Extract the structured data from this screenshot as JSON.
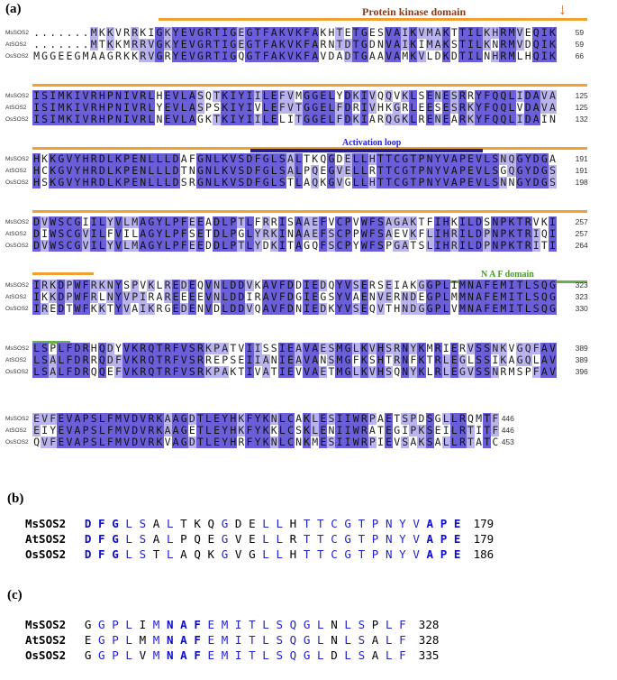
{
  "panels": {
    "a": "(a)",
    "b": "(b)",
    "c": "(c)"
  },
  "annotations": {
    "kinase": "Protein kinase domain",
    "activation": "Activation loop",
    "naf": "N A F domain",
    "arrow": "↓"
  },
  "alignment": [
    {
      "rows": [
        {
          "name": "MsSOS2",
          "seq": ".......MKKVRRKIGKYEVGRTIGEGTFAKVKFAKHTETGESVAIKVMAKTTILKHRMVEQIKRE",
          "num": "59"
        },
        {
          "name": "AtSOS2",
          "seq": ".......MTKKMRRVGKYEVGRTIGEGTFAKVKFARNTDTGDNVAIKIMAKSTILKNRMVDQIKRE",
          "num": "59"
        },
        {
          "name": "OsSOS2",
          "seq": "MGGEEGMAAGRKKRVGRYEVGRTIGQGTFAKVKFAVDADTGAAVAMKVLDKDTILNHRMLHQIKRE",
          "num": "66"
        }
      ]
    },
    {
      "rows": [
        {
          "name": "MsSOS2",
          "seq": "ISIMKIVRHPNIVRLHEVLASQTKIYIILEFVMGGELYDKIVQQVKLSENESRRYFQQLIDAVAHC",
          "num": "125"
        },
        {
          "name": "AtSOS2",
          "seq": "ISIMKIVRHPNIVRLYEVLASPSKIYIVLEFVTGGELFDRIVHKGRLEESESRKYFQQLVDAVAHC",
          "num": "125"
        },
        {
          "name": "OsSOS2",
          "seq": "ISIMKIVRHPNIVRLNEVLAGKTKIYIILELITGGELFDKIARQGKLRENEARKYFQQLIDAINYC",
          "num": "132"
        }
      ]
    },
    {
      "rows": [
        {
          "name": "MsSOS2",
          "seq": "HKKGVYHRDLKPENLLLDAFGNLKVSDFGLSALTKQGDELLHTTCGTPNYVAPEVLSNQGYDGAAA",
          "num": "191"
        },
        {
          "name": "AtSOS2",
          "seq": "HCKGVYHRDLKPENLLLDTNGNLKVSDFGLSALPQEGVELLRTTCGTPNYVAPEVLSGQGYDGSAA",
          "num": "191"
        },
        {
          "name": "OsSOS2",
          "seq": "HSKGVYHRDLKPENLLLDSRGNLKVSDFGLSTLAQKGVGLLHTTCGTPNYVAPEVLSNNGYDGSAA",
          "num": "198"
        }
      ]
    },
    {
      "rows": [
        {
          "name": "MsSOS2",
          "seq": "DVWSCGIILYVLMAGYLPFEEADLPTLFRRISAAEFVCPVWFSAGAKTFIHKILDSNPKTRVKIEE",
          "num": "257"
        },
        {
          "name": "AtSOS2",
          "seq": "DIWSCGVILFVILAGYLPFSETDLPGLYRKINAAEFSCPPWFSAEVKFLIHRILDPNPKTRIQIQG",
          "num": "257"
        },
        {
          "name": "OsSOS2",
          "seq": "DVWSCGVILYVLMAGYLPFEEDDLPTLYDKITAGQFSCPYWFSPGATSLIHRILDPNPKTRITIEQ",
          "num": "264"
        }
      ]
    },
    {
      "rows": [
        {
          "name": "MsSOS2",
          "seq": "IRKDPWFRKNYSPVKLREDEQVNLDDVKAVFDDIEDQYVSERSEIAKGGPLIMNAFEMITLSQGLN",
          "num": "323"
        },
        {
          "name": "AtSOS2",
          "seq": "IKKDPWFRLNYVPIRAREEEEVNLDDIRAVFDGIEGSYVAENVERNDEGPLMMNAFEMITLSQGLN",
          "num": "323"
        },
        {
          "name": "OsSOS2",
          "seq": "IREDTWFKKTYVAIKRGEDENVDLDDVQAVFDNIEDKYVSEQVTHNDGGPLVMNAFEMITLSQGLD",
          "num": "330"
        }
      ]
    },
    {
      "rows": [
        {
          "name": "MsSOS2",
          "seq": "LSPLFDRHQDYVKRQTRFVSRKPATVIISSIEAVAESMGLKVHSRNYKMRIERVSSNKVGQFAVVL",
          "num": "389"
        },
        {
          "name": "AtSOS2",
          "seq": "LSALFDRRQDFVKRQTRFVSRREPSEIIANIEAVANSMGFKSHTRNFKTRLEGLSSIKAGQLAVVI",
          "num": "389"
        },
        {
          "name": "OsSOS2",
          "seq": "LSALFDRQQEFVKRQTRFVSRKPAKTIVATIEVVAETMGLKVHSQNYKLRLEGVSSNRMSPFAVVL",
          "num": "396"
        }
      ]
    },
    {
      "rows": [
        {
          "name": "MsSOS2",
          "seq": "EVFEVAPSLFMVDVRKAAGDTLEYHKFYKNLCAKLESIIWRPAETSPDSGLLRQMTF",
          "num": "446"
        },
        {
          "name": "AtSOS2",
          "seq": "EIYEVAPSLFMVDVRKAAGETLEYHKFYKKLCSKLENIIWRATEGIPKSEILRTITF",
          "num": "446"
        },
        {
          "name": "OsSOS2",
          "seq": "QVFEVAPSLFMVDVRKVAGDTLEYHRFYKNLCNKMESIIWRPIEVSAKSALLRTATC",
          "num": "453"
        }
      ]
    }
  ],
  "panel_b": {
    "rows": [
      {
        "name": "MsSOS2",
        "seq": "DFGLSALTKQGDELLHTTCGTPNYVAPE",
        "num": "179"
      },
      {
        "name": "AtSOS2",
        "seq": "DFGLSALPQEGVELLRTTCGTPNYVAPE",
        "num": "179"
      },
      {
        "name": "OsSOS2",
        "seq": "DFGLSTLAQKGVGLLHTTCGTPNYVAPE",
        "num": "186"
      }
    ]
  },
  "panel_c": {
    "rows": [
      {
        "name": "MsSOS2",
        "seq": "GGPLIMNAFEMITLSQGLNLSPLF",
        "num": "328"
      },
      {
        "name": "AtSOS2",
        "seq": "EGPLMMNAFEMITLSQGLNLSALF",
        "num": "328"
      },
      {
        "name": "OsSOS2",
        "seq": "GGPLVMNAFEMITLSQGLDLSALF",
        "num": "335"
      }
    ]
  }
}
